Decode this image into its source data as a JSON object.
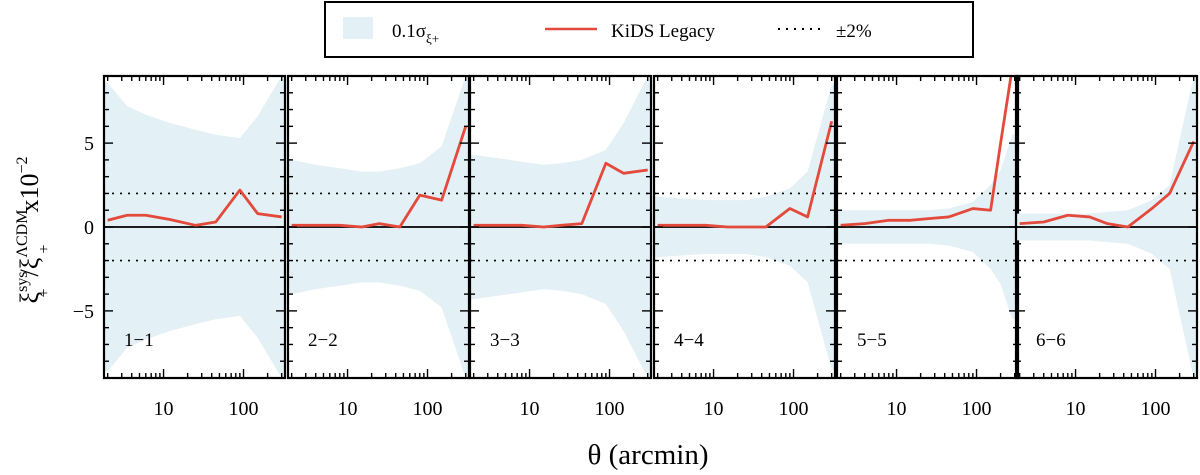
{
  "legend": {
    "band_label": "0.1σ",
    "band_subscript": "ξ+",
    "line_label": "KiDS Legacy",
    "dotted_label": "±2%"
  },
  "axes": {
    "xlabel": "θ  (arcmin)",
    "ylabel_main": "ξ",
    "ylabel_sup1": "sys",
    "ylabel_sub1": "+",
    "ylabel_sep": "/",
    "ylabel_sup2": "ΛCDM",
    "ylabel_sub2": "+",
    "ylabel_scale": "x10",
    "ylabel_scale_exp": "−2"
  },
  "colors": {
    "band": "#e3f0f6",
    "line": "#e34a3b",
    "axis": "#000000"
  },
  "chart_data": {
    "type": "line",
    "x_scale": "log",
    "xlim": [
      1.8,
      330
    ],
    "ylim": [
      -9,
      9
    ],
    "x_ticks": [
      10,
      100
    ],
    "y_ticks": [
      -5,
      0,
      5
    ],
    "y_tick_labels": [
      "−5",
      "0",
      "5"
    ],
    "reference_lines": {
      "solid": 0,
      "dotted": [
        2,
        -2
      ]
    },
    "panels": [
      {
        "label": "1−1",
        "theta": [
          2,
          3.5,
          6,
          12,
          25,
          45,
          90,
          150,
          300
        ],
        "values": [
          0.4,
          0.7,
          0.7,
          0.45,
          0.1,
          0.3,
          2.2,
          0.8,
          0.6
        ],
        "band": [
          8.6,
          7.2,
          6.7,
          6.2,
          5.8,
          5.5,
          5.3,
          6.6,
          9.0
        ]
      },
      {
        "label": "2−2",
        "theta": [
          2,
          4,
          8,
          15,
          25,
          45,
          80,
          150,
          300
        ],
        "values": [
          0.1,
          0.1,
          0.1,
          0.0,
          0.2,
          0.0,
          1.9,
          1.6,
          6.0
        ],
        "band": [
          4.0,
          3.7,
          3.5,
          3.3,
          3.3,
          3.5,
          3.8,
          4.8,
          9.0
        ]
      },
      {
        "label": "3−3",
        "theta": [
          2,
          4,
          8,
          15,
          25,
          45,
          90,
          150,
          300
        ],
        "values": [
          0.1,
          0.1,
          0.1,
          0.0,
          0.1,
          0.2,
          3.8,
          3.2,
          3.4
        ],
        "band": [
          4.3,
          4.1,
          3.9,
          3.7,
          3.8,
          4.0,
          4.6,
          6.2,
          9.0
        ]
      },
      {
        "label": "4−4",
        "theta": [
          2,
          4,
          8,
          15,
          25,
          45,
          90,
          150,
          300
        ],
        "values": [
          0.1,
          0.1,
          0.1,
          0.0,
          0.0,
          0.0,
          1.1,
          0.6,
          6.3
        ],
        "band": [
          1.8,
          1.7,
          1.6,
          1.6,
          1.6,
          1.8,
          2.3,
          3.3,
          8.5
        ]
      },
      {
        "label": "5−5",
        "theta": [
          2,
          4,
          8,
          15,
          25,
          45,
          90,
          150,
          200,
          280
        ],
        "values": [
          0.1,
          0.2,
          0.4,
          0.4,
          0.5,
          0.6,
          1.1,
          1.0,
          5.0,
          9.5
        ],
        "band": [
          1.0,
          1.0,
          1.0,
          1.0,
          1.0,
          1.1,
          1.5,
          2.5,
          3.4,
          5.5
        ]
      },
      {
        "label": "6−6",
        "theta": [
          2,
          4,
          8,
          15,
          25,
          45,
          90,
          150,
          300
        ],
        "values": [
          0.2,
          0.3,
          0.7,
          0.6,
          0.2,
          0.0,
          1.1,
          2.0,
          5.1
        ],
        "band": [
          0.8,
          0.8,
          0.8,
          0.8,
          0.9,
          1.0,
          1.6,
          2.5,
          9.0
        ]
      }
    ]
  }
}
